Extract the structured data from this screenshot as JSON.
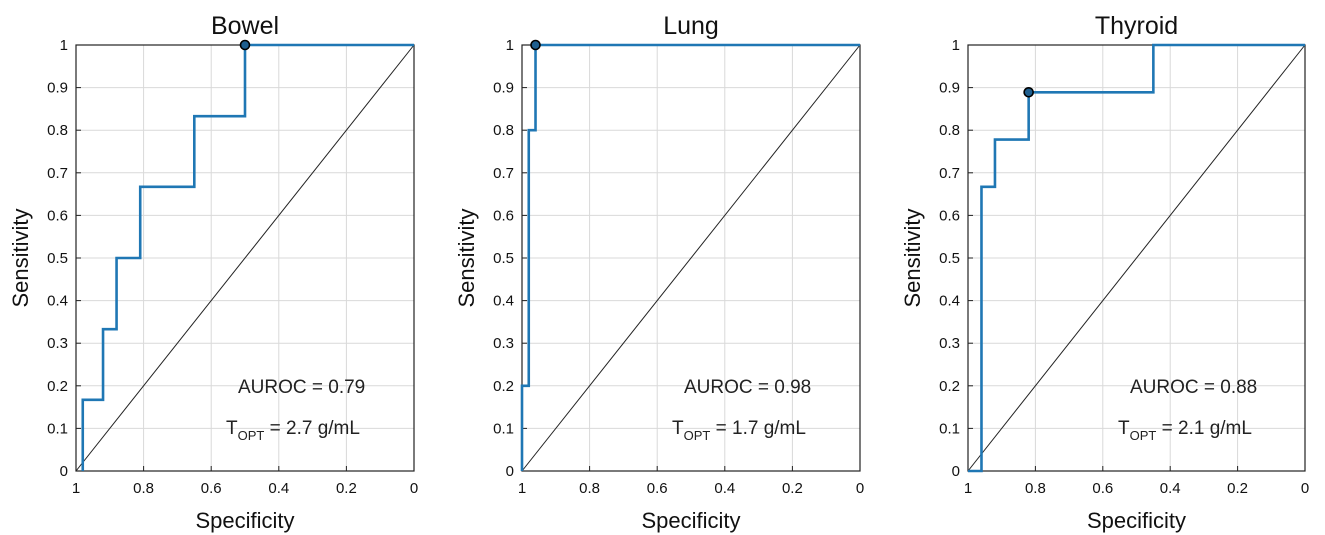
{
  "chart_data": [
    {
      "type": "line",
      "title": "Bowel",
      "xlabel": "Specificity",
      "ylabel": "Sensitivity",
      "xlim": [
        1,
        0
      ],
      "ylim": [
        0,
        1
      ],
      "x_reversed": true,
      "grid": true,
      "xticks": [
        "1",
        "0.8",
        "0.6",
        "0.4",
        "0.2",
        "0"
      ],
      "yticks": [
        "0",
        "0.1",
        "0.2",
        "0.3",
        "0.4",
        "0.5",
        "0.6",
        "0.7",
        "0.8",
        "0.9",
        "1"
      ],
      "series": [
        {
          "color": "#1f77b4",
          "points": [
            [
              0.98,
              0
            ],
            [
              0.98,
              0.167
            ],
            [
              0.92,
              0.167
            ],
            [
              0.92,
              0.333
            ],
            [
              0.88,
              0.333
            ],
            [
              0.88,
              0.5
            ],
            [
              0.81,
              0.5
            ],
            [
              0.81,
              0.667
            ],
            [
              0.65,
              0.667
            ],
            [
              0.65,
              0.833
            ],
            [
              0.5,
              0.833
            ],
            [
              0.5,
              1
            ],
            [
              0,
              1
            ]
          ]
        }
      ],
      "diagonal": true,
      "optimal_point": [
        0.5,
        1
      ],
      "annotations": {
        "auroc": "AUROC = 0.79",
        "topt_main": "T",
        "topt_sub": "OPT",
        "topt_value": " = 2.7 g/mL"
      }
    },
    {
      "type": "line",
      "title": "Lung",
      "xlabel": "Specificity",
      "ylabel": "Sensitivity",
      "xlim": [
        1,
        0
      ],
      "ylim": [
        0,
        1
      ],
      "x_reversed": true,
      "grid": true,
      "xticks": [
        "1",
        "0.8",
        "0.6",
        "0.4",
        "0.2",
        "0"
      ],
      "yticks": [
        "0",
        "0.1",
        "0.2",
        "0.3",
        "0.4",
        "0.5",
        "0.6",
        "0.7",
        "0.8",
        "0.9",
        "1"
      ],
      "series": [
        {
          "color": "#1f77b4",
          "points": [
            [
              1,
              0
            ],
            [
              1,
              0.2
            ],
            [
              0.98,
              0.2
            ],
            [
              0.98,
              0.8
            ],
            [
              0.96,
              0.8
            ],
            [
              0.96,
              1
            ],
            [
              0,
              1
            ]
          ]
        }
      ],
      "diagonal": true,
      "optimal_point": [
        0.96,
        1
      ],
      "annotations": {
        "auroc": "AUROC = 0.98",
        "topt_main": "T",
        "topt_sub": "OPT",
        "topt_value": " = 1.7 g/mL"
      }
    },
    {
      "type": "line",
      "title": "Thyroid",
      "xlabel": "Specificity",
      "ylabel": "Sensitivity",
      "xlim": [
        1,
        0
      ],
      "ylim": [
        0,
        1
      ],
      "x_reversed": true,
      "grid": true,
      "xticks": [
        "1",
        "0.8",
        "0.6",
        "0.4",
        "0.2",
        "0"
      ],
      "yticks": [
        "0",
        "0.1",
        "0.2",
        "0.3",
        "0.4",
        "0.5",
        "0.6",
        "0.7",
        "0.8",
        "0.9",
        "1"
      ],
      "series": [
        {
          "color": "#1f77b4",
          "points": [
            [
              1,
              0
            ],
            [
              0.96,
              0
            ],
            [
              0.96,
              0.667
            ],
            [
              0.92,
              0.667
            ],
            [
              0.92,
              0.778
            ],
            [
              0.82,
              0.778
            ],
            [
              0.82,
              0.889
            ],
            [
              0.45,
              0.889
            ],
            [
              0.45,
              1
            ],
            [
              0,
              1
            ]
          ]
        }
      ],
      "diagonal": true,
      "optimal_point": [
        0.82,
        0.889
      ],
      "annotations": {
        "auroc": "AUROC = 0.88",
        "topt_main": "T",
        "topt_sub": "OPT",
        "topt_value": " = 2.1 g/mL"
      }
    }
  ]
}
